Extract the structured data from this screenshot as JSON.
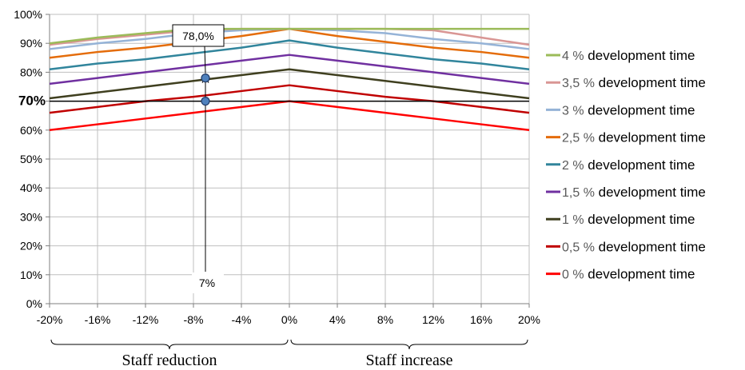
{
  "chart_data": {
    "type": "line",
    "x": [
      -20,
      -16,
      -12,
      -8,
      -4,
      0,
      4,
      8,
      12,
      16,
      20
    ],
    "xtick_labels": [
      "-20%",
      "-16%",
      "-12%",
      "-8%",
      "-4%",
      "0%",
      "4%",
      "8%",
      "12%",
      "16%",
      "20%"
    ],
    "ytick_labels": [
      "0%",
      "10%",
      "20%",
      "30%",
      "40%",
      "50%",
      "60%",
      "70%",
      "80%",
      "90%",
      "100%"
    ],
    "xlim": [
      -20,
      20
    ],
    "ylim": [
      0,
      100
    ],
    "grid": true,
    "legend_position": "right",
    "series": [
      {
        "name": "4 %",
        "suffix": "development time",
        "color": "#9bbb59",
        "values": [
          90,
          92,
          93.5,
          95,
          95,
          95,
          95,
          95,
          95,
          95,
          95
        ]
      },
      {
        "name": "3,5 %",
        "suffix": "development time",
        "color": "#d99694",
        "values": [
          89.5,
          91.5,
          93,
          94.5,
          95,
          95,
          95,
          95,
          94.5,
          92,
          89.5
        ]
      },
      {
        "name": "3 %",
        "suffix": "development time",
        "color": "#95b3d7",
        "values": [
          88,
          90,
          91.5,
          93.5,
          94.5,
          95,
          94.5,
          93.5,
          91.5,
          90,
          88
        ]
      },
      {
        "name": "2,5 %",
        "suffix": "development time",
        "color": "#e46c0a",
        "values": [
          85,
          87,
          88.5,
          90.5,
          92.5,
          95,
          92.5,
          90.5,
          88.5,
          87,
          85
        ]
      },
      {
        "name": "2 %",
        "suffix": "development time",
        "color": "#31859c",
        "values": [
          81,
          83,
          84.5,
          86.5,
          88.5,
          91,
          88.5,
          86.5,
          84.5,
          83,
          81
        ]
      },
      {
        "name": "1,5 %",
        "suffix": "development time",
        "color": "#7030a0",
        "values": [
          76,
          78,
          80,
          82,
          84,
          86,
          84,
          82,
          80,
          78,
          76
        ]
      },
      {
        "name": "1 %",
        "suffix": "development time",
        "color": "#3f3f1f",
        "values": [
          71,
          73,
          75,
          77,
          79,
          81,
          79,
          77,
          75,
          73,
          71
        ]
      },
      {
        "name": "0,5 %",
        "suffix": "development time",
        "color": "#c00000",
        "values": [
          66,
          68,
          70,
          71.5,
          73.5,
          75.5,
          73.5,
          71.5,
          70,
          68,
          66
        ]
      },
      {
        "name": "0 %",
        "suffix": "development time",
        "color": "#ff0000",
        "values": [
          60,
          62,
          64,
          66,
          68,
          70,
          68,
          66,
          64,
          62,
          60
        ]
      }
    ],
    "reference_line": {
      "y": 70,
      "label": "70%"
    },
    "annotation": {
      "x": -7,
      "y_low": 70,
      "y_high": 78,
      "value_label": "78,0%",
      "x_label": "7%"
    },
    "groups": [
      {
        "label": "Staff reduction",
        "from": -20,
        "to": 0
      },
      {
        "label": "Staff increase",
        "from": 0,
        "to": 20
      }
    ]
  }
}
